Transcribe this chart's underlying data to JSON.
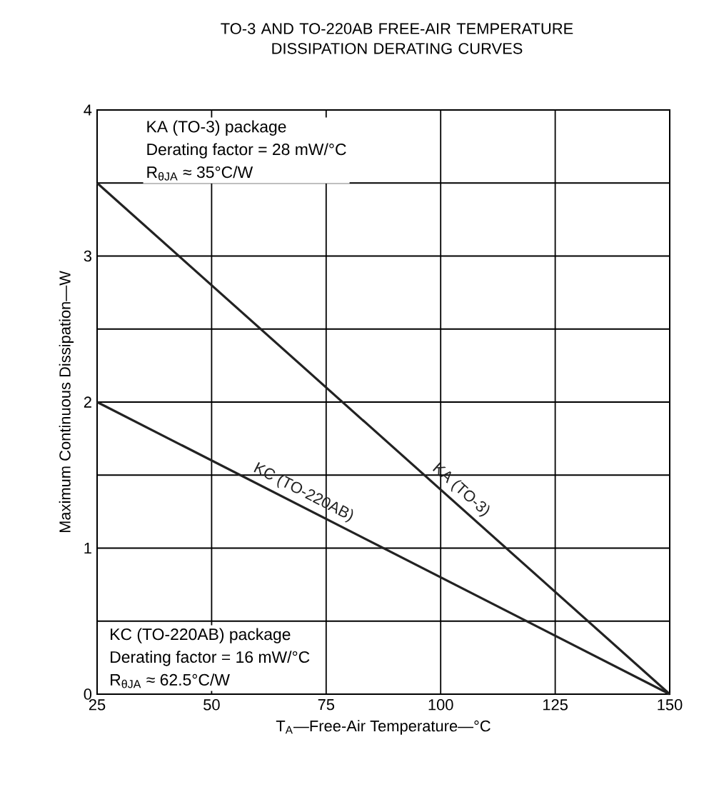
{
  "chart_data": {
    "type": "line",
    "title": "TO-3 AND TO-220AB FREE-AIR TEMPERATURE DISSIPATION DERATING CURVES",
    "xlabel": "T$_{A}$—Free-Air Temperature—°C",
    "ylabel": "Maximum Continuous Dissipation—W",
    "x": [
      25,
      150
    ],
    "series": [
      {
        "name": "KA (TO-3)",
        "color": "#222222",
        "values": [
          3.5,
          0
        ]
      },
      {
        "name": "KC (TO-220AB)",
        "color": "#222222",
        "values": [
          2,
          0
        ]
      }
    ],
    "xlim": [
      25,
      150
    ],
    "ylim": [
      0,
      4
    ],
    "xticks": [
      25,
      50,
      75,
      100,
      125,
      150
    ],
    "yticks": [
      0,
      {
        "value": 0.5,
        "label": null
      },
      1,
      {
        "value": 1.5,
        "label": null
      },
      2,
      {
        "value": 2.5,
        "label": null
      },
      3,
      {
        "value": 3.5,
        "label": null
      },
      4
    ],
    "grid": true,
    "marker": "none",
    "line_style": "solid",
    "annotations": [
      "KA (TO-3) package",
      "Derating factor = 28 mW/°C",
      "R$_{θJA}$ ≈ 35°C/W",
      "KC (TO-220AB) package",
      "Derating factor = 16 mW/°C",
      "R$_{θJA}$ ≈ 62.5°C/W"
    ]
  }
}
